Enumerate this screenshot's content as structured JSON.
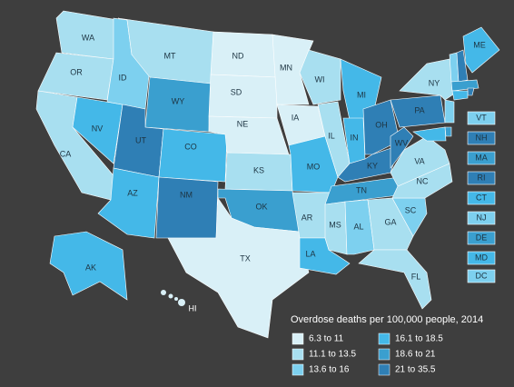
{
  "map": {
    "states": [
      {
        "label": "WA",
        "color": "#a8dff0"
      },
      {
        "label": "OR",
        "color": "#a8dff0"
      },
      {
        "label": "CA",
        "color": "#a8dff0"
      },
      {
        "label": "NV",
        "color": "#44b8e8"
      },
      {
        "label": "ID",
        "color": "#7dd0ef"
      },
      {
        "label": "MT",
        "color": "#a8dff0"
      },
      {
        "label": "WY",
        "color": "#3a9fcf"
      },
      {
        "label": "UT",
        "color": "#2f7fb5"
      },
      {
        "label": "AZ",
        "color": "#44b8e8"
      },
      {
        "label": "CO",
        "color": "#44b8e8"
      },
      {
        "label": "NM",
        "color": "#2f7fb5"
      },
      {
        "label": "ND",
        "color": "#d9f0f7"
      },
      {
        "label": "SD",
        "color": "#d9f0f7"
      },
      {
        "label": "NE",
        "color": "#d9f0f7"
      },
      {
        "label": "KS",
        "color": "#a8dff0"
      },
      {
        "label": "OK",
        "color": "#3a9fcf"
      },
      {
        "label": "TX",
        "color": "#d9f0f7"
      },
      {
        "label": "MN",
        "color": "#d9f0f7"
      },
      {
        "label": "IA",
        "color": "#d9f0f7"
      },
      {
        "label": "MO",
        "color": "#44b8e8"
      },
      {
        "label": "AR",
        "color": "#a8dff0"
      },
      {
        "label": "LA",
        "color": "#44b8e8"
      },
      {
        "label": "WI",
        "color": "#a8dff0"
      },
      {
        "label": "IL",
        "color": "#a8dff0"
      },
      {
        "label": "MI",
        "color": "#44b8e8"
      },
      {
        "label": "IN",
        "color": "#44b8e8"
      },
      {
        "label": "OH",
        "color": "#2f7fb5"
      },
      {
        "label": "KY",
        "color": "#2f7fb5"
      },
      {
        "label": "TN",
        "color": "#3a9fcf"
      },
      {
        "label": "MS",
        "color": "#a8dff0"
      },
      {
        "label": "AL",
        "color": "#7dd0ef"
      },
      {
        "label": "GA",
        "color": "#a8dff0"
      },
      {
        "label": "FL",
        "color": "#a8dff0"
      },
      {
        "label": "SC",
        "color": "#7dd0ef"
      },
      {
        "label": "NC",
        "color": "#a8dff0"
      },
      {
        "label": "VA",
        "color": "#a8dff0"
      },
      {
        "label": "WV",
        "color": "#2f7fb5"
      },
      {
        "label": "PA",
        "color": "#2f7fb5"
      },
      {
        "label": "NY",
        "color": "#a8dff0"
      },
      {
        "label": "ME",
        "color": "#44b8e8"
      },
      {
        "label": "VT",
        "color": "#7dd0ef"
      },
      {
        "label": "NH",
        "color": "#2f7fb5"
      },
      {
        "label": "MA",
        "color": "#3a9fcf"
      },
      {
        "label": "RI",
        "color": "#2f7fb5"
      },
      {
        "label": "CT",
        "color": "#44b8e8"
      },
      {
        "label": "NJ",
        "color": "#7dd0ef"
      },
      {
        "label": "DE",
        "color": "#3a9fcf"
      },
      {
        "label": "MD",
        "color": "#44b8e8"
      },
      {
        "label": "DC",
        "color": "#7dd0ef"
      },
      {
        "label": "AK",
        "color": "#44b8e8"
      },
      {
        "label": "HI",
        "color": "#d9f0f7"
      }
    ],
    "legend": {
      "title": "Overdose deaths per 100,000 people, 2014",
      "items": [
        {
          "label": "6.3 to 11",
          "color": "#d9f0f7"
        },
        {
          "label": "11.1 to 13.5",
          "color": "#a8dff0"
        },
        {
          "label": "13.6 to 16",
          "color": "#7dd0ef"
        },
        {
          "label": "16.1 to 18.5",
          "color": "#44b8e8"
        },
        {
          "label": "18.6 to 21",
          "color": "#3a9fcf"
        },
        {
          "label": "21 to 35.5",
          "color": "#2f7fb5"
        }
      ]
    }
  }
}
